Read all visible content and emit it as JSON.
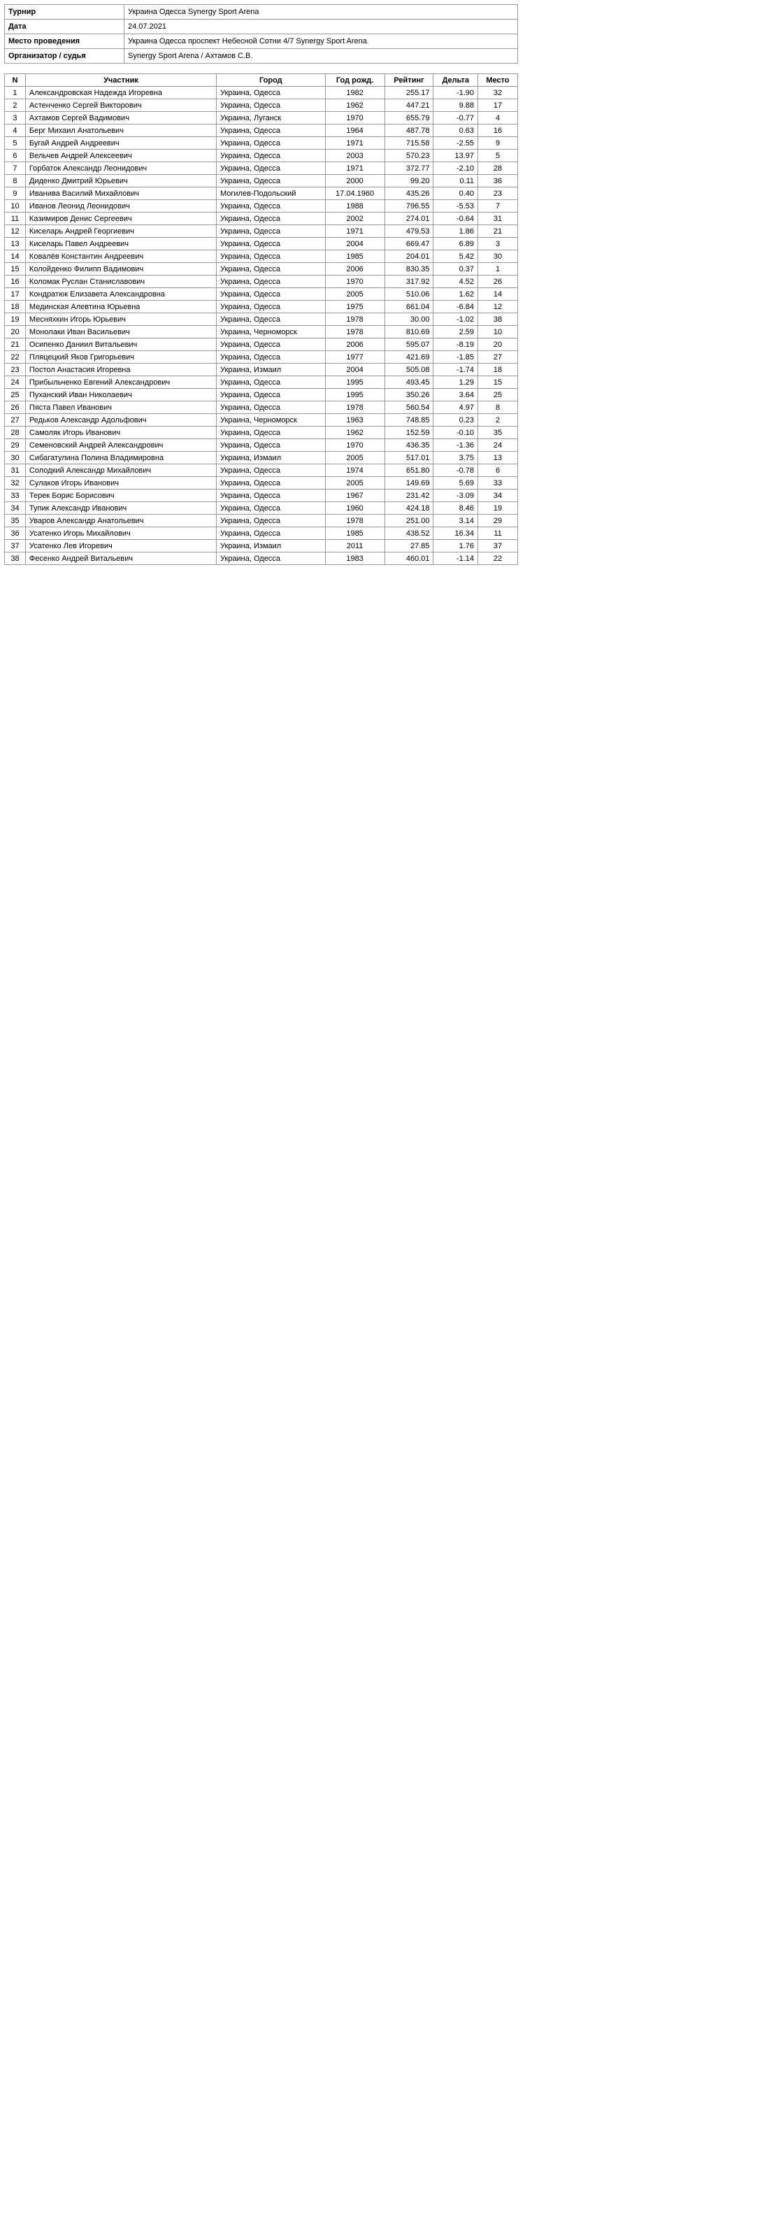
{
  "info": [
    {
      "label": "Турнир",
      "value": "Украина Одесса Synergy Sport Arena"
    },
    {
      "label": "Дата",
      "value": "24.07.2021"
    },
    {
      "label": "Место проведения",
      "value": "Украина Одесса проспект Небесной Сотни 4/7 Synergy Sport Arena"
    },
    {
      "label": "Организатор / судья",
      "value": "Synergy Sport Arena / Ахтамов С.В."
    }
  ],
  "headers": [
    "N",
    "Участник",
    "Город",
    "Год рожд.",
    "Рейтинг",
    "Дельта",
    "Место"
  ],
  "players": [
    [
      "1",
      "Александровская Надежда Игоревна",
      "Украина, Одесса",
      "1982",
      "255.17",
      "-1.90",
      "32"
    ],
    [
      "2",
      "Астенченко Сергей Викторович",
      "Украина, Одесса",
      "1962",
      "447.21",
      "9.88",
      "17"
    ],
    [
      "3",
      "Ахтамов Сергей Вадимович",
      "Украина, Луганск",
      "1970",
      "655.79",
      "-0.77",
      "4"
    ],
    [
      "4",
      "Берг Михаил Анатольевич",
      "Украина, Одесса",
      "1964",
      "487.78",
      "0.63",
      "16"
    ],
    [
      "5",
      "Бугай Андрей Андреевич",
      "Украина, Одесса",
      "1971",
      "715.58",
      "-2.55",
      "9"
    ],
    [
      "6",
      "Вельчев Андрей Алексеевич",
      "Украина, Одесса",
      "2003",
      "570.23",
      "13.97",
      "5"
    ],
    [
      "7",
      "Горбаток Александр Леонидович",
      "Украина, Одесса",
      "1971",
      "372.77",
      "-2.10",
      "28"
    ],
    [
      "8",
      "Диденко Дмитрий Юрьевич",
      "Украина, Одесса",
      "2000",
      "99.20",
      "0.11",
      "36"
    ],
    [
      "9",
      "Иванива Василий Михайлович",
      "Могилев-Подольский",
      "17.04.1960",
      "435.26",
      "0.40",
      "23"
    ],
    [
      "10",
      "Иванов Леонид Леонидович",
      "Украина, Одесса",
      "1988",
      "796.55",
      "-5.53",
      "7"
    ],
    [
      "11",
      "Казимиров Денис Сергеевич",
      "Украина, Одесса",
      "2002",
      "274.01",
      "-0.64",
      "31"
    ],
    [
      "12",
      "Киселарь Андрей Георгиевич",
      "Украина, Одесса",
      "1971",
      "479.53",
      "1.86",
      "21"
    ],
    [
      "13",
      "Киселарь Павел Андреевич",
      "Украина, Одесса",
      "2004",
      "669.47",
      "6.89",
      "3"
    ],
    [
      "14",
      "Ковалёв Константин Андреевич",
      "Украина, Одесса",
      "1985",
      "204.01",
      "5.42",
      "30"
    ],
    [
      "15",
      "Колойденко Филипп Вадимович",
      "Украина, Одесса",
      "2006",
      "830.35",
      "0.37",
      "1"
    ],
    [
      "16",
      "Коломак Руслан Станиславович",
      "Украина, Одесса",
      "1970",
      "317.92",
      "4.52",
      "26"
    ],
    [
      "17",
      "Кондратюк Елизавета Александровна",
      "Украина, Одесса",
      "2005",
      "510.06",
      "1.62",
      "14"
    ],
    [
      "18",
      "Мединская Алевтина Юрьевна",
      "Украина, Одесса",
      "1975",
      "661.04",
      "-6.84",
      "12"
    ],
    [
      "19",
      "Месняхкин Игорь Юрьевич",
      "Украина, Одесса",
      "1978",
      "30.00",
      "-1.02",
      "38"
    ],
    [
      "20",
      "Монолаки Иван Васильевич",
      "Украина, Черноморск",
      "1978",
      "810.69",
      "2.59",
      "10"
    ],
    [
      "21",
      "Осипенко Даниил Витальевич",
      "Украина, Одесса",
      "2006",
      "595.07",
      "-8.19",
      "20"
    ],
    [
      "22",
      "Пляцецкий Яков Григорьевич",
      "Украина, Одесса",
      "1977",
      "421.69",
      "-1.85",
      "27"
    ],
    [
      "23",
      "Постол Анастасия Игоревна",
      "Украина, Измаил",
      "2004",
      "505.08",
      "-1.74",
      "18"
    ],
    [
      "24",
      "Прибыльченко Евгений Александрович",
      "Украина, Одесса",
      "1995",
      "493.45",
      "1.29",
      "15"
    ],
    [
      "25",
      "Пуханский Иван Николаевич",
      "Украина, Одесса",
      "1995",
      "350.26",
      "3.64",
      "25"
    ],
    [
      "26",
      "Пяста Павел Иванович",
      "Украина, Одесса",
      "1978",
      "560.54",
      "4.97",
      "8"
    ],
    [
      "27",
      "Редьков Александр Адольфович",
      "Украина, Черноморск",
      "1963",
      "748.85",
      "0.23",
      "2"
    ],
    [
      "28",
      "Самоляк Игорь Иванович",
      "Украина, Одесса",
      "1962",
      "152.59",
      "-0.10",
      "35"
    ],
    [
      "29",
      "Семеновский Андрей Александрович",
      "Украина, Одесса",
      "1970",
      "436.35",
      "-1.36",
      "24"
    ],
    [
      "30",
      "Сибагатулина Полина Владимировна",
      "Украина, Измаил",
      "2005",
      "517.01",
      "3.75",
      "13"
    ],
    [
      "31",
      "Солодкий Александр Михайлович",
      "Украина, Одесса",
      "1974",
      "651.80",
      "-0.78",
      "6"
    ],
    [
      "32",
      "Сулаков Игорь Иванович",
      "Украина, Одесса",
      "2005",
      "149.69",
      "5.69",
      "33"
    ],
    [
      "33",
      "Терек Борис Борисович",
      "Украина, Одесса",
      "1967",
      "231.42",
      "-3.09",
      "34"
    ],
    [
      "34",
      "Тупик Александр Иванович",
      "Украина, Одесса",
      "1960",
      "424.18",
      "8.46",
      "19"
    ],
    [
      "35",
      "Уваров Александр Анатольевич",
      "Украина, Одесса",
      "1978",
      "251.00",
      "3.14",
      "29"
    ],
    [
      "36",
      "Усатенко Игорь Михайлович",
      "Украина, Одесса",
      "1985",
      "438.52",
      "16.34",
      "11"
    ],
    [
      "37",
      "Усатенко Лев Игоревич",
      "Украина, Измаил",
      "2011",
      "27.85",
      "1.76",
      "37"
    ],
    [
      "38",
      "Фесенко Андрей Витальевич",
      "Украина, Одесса",
      "1983",
      "460.01",
      "-1.14",
      "22"
    ]
  ]
}
